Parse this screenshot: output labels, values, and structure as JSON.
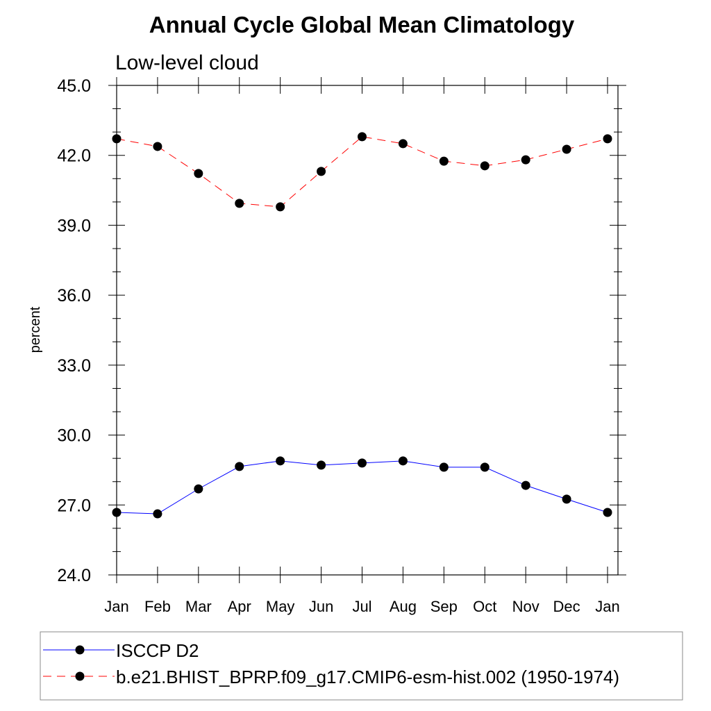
{
  "chart_data": {
    "type": "line",
    "title": "Annual Cycle Global Mean Climatology",
    "subtitle": "Low-level cloud",
    "xlabel": "",
    "ylabel": "percent",
    "categories": [
      "Jan",
      "Feb",
      "Mar",
      "Apr",
      "May",
      "Jun",
      "Jul",
      "Aug",
      "Sep",
      "Oct",
      "Nov",
      "Dec",
      "Jan"
    ],
    "ylim": [
      24.0,
      45.0
    ],
    "yticks": [
      "24.0",
      "27.0",
      "30.0",
      "33.0",
      "36.0",
      "39.0",
      "42.0",
      "45.0"
    ],
    "grid": false,
    "legend_position": "bottom",
    "series": [
      {
        "name": "ISCCP D2",
        "color": "#0000ff",
        "dash": "solid",
        "marker": "filled-circle",
        "values": [
          26.68,
          26.62,
          27.69,
          28.65,
          28.89,
          28.71,
          28.8,
          28.89,
          28.62,
          28.62,
          27.84,
          27.25,
          26.68
        ]
      },
      {
        "name": "b.e21.BHIST_BPRP.f09_g17.CMIP6-esm-hist.002 (1950-1974)",
        "color": "#ff0000",
        "dash": "dashed",
        "marker": "filled-circle",
        "values": [
          42.71,
          42.38,
          41.22,
          39.94,
          39.79,
          41.31,
          42.8,
          42.5,
          41.75,
          41.55,
          41.81,
          42.26,
          42.71
        ]
      }
    ]
  }
}
